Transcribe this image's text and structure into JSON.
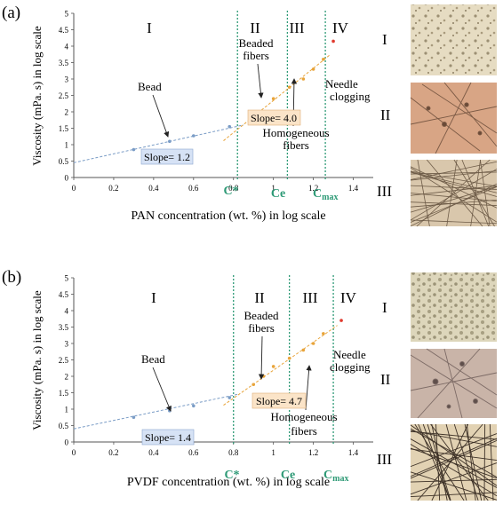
{
  "figure_panels": [
    {
      "panel_label": "(a)",
      "ylabel": "Viscosity (mPa. s) in log scale",
      "xlabel": "PAN concentration (wt. %) in log scale",
      "regions": [
        "I",
        "II",
        "III",
        "IV"
      ],
      "annotations": {
        "bead": "Bead",
        "beaded": [
          "Beaded",
          "fibers"
        ],
        "homogeneous": [
          "Homogeneous",
          "fibers"
        ],
        "needle": [
          "Needle",
          "clogging"
        ],
        "slope1": "Slope= 1.2",
        "slope2": "Slope= 4.0"
      },
      "thresholds": {
        "c_star": "C*",
        "ce": "Ce",
        "cmax": "C",
        "cmax_sub": "max"
      },
      "micrograph_labels": [
        "I",
        "II",
        "III"
      ]
    },
    {
      "panel_label": "(b)",
      "ylabel": "Viscosity (mPa. s) in log scale",
      "xlabel": "PVDF concentration (wt. %) in log scale",
      "regions": [
        "I",
        "II",
        "III",
        "IV"
      ],
      "annotations": {
        "bead": "Bead",
        "beaded": [
          "Beaded",
          "fibers"
        ],
        "homogeneous": [
          "Homogeneous",
          "fibers"
        ],
        "needle": [
          "Needle",
          "clogging"
        ],
        "slope1": "Slope= 1.4",
        "slope2": "Slope= 4.7"
      },
      "thresholds": {
        "c_star": "C*",
        "ce": "Ce",
        "cmax": "C",
        "cmax_sub": "max"
      },
      "micrograph_labels": [
        "I",
        "II",
        "III"
      ]
    }
  ],
  "chart_data": [
    {
      "type": "scatter",
      "xlim": [
        0,
        1.5
      ],
      "ylim": [
        0,
        5
      ],
      "x_ticks": [
        0,
        0.2,
        0.4,
        0.6,
        0.8,
        1,
        1.2,
        1.4
      ],
      "y_ticks": [
        0,
        0.5,
        1,
        1.5,
        2,
        2.5,
        3,
        3.5,
        4,
        4.5,
        5
      ],
      "grid": false,
      "thresholds_x": [
        0.82,
        1.07,
        1.26
      ],
      "series": [
        {
          "color": "#7a9cc6",
          "x": [
            0.3,
            0.48,
            0.6,
            0.78
          ],
          "y": [
            0.85,
            1.1,
            1.27,
            1.55
          ]
        },
        {
          "color": "#e8a43a",
          "x": [
            0.9,
            0.95,
            1.0,
            1.08,
            1.15,
            1.2,
            1.25
          ],
          "y": [
            1.75,
            2.0,
            2.4,
            2.75,
            3.0,
            3.3,
            3.6
          ]
        },
        {
          "color": "#e03a2e",
          "x": [
            1.3
          ],
          "y": [
            4.15
          ]
        }
      ],
      "fit_lines": [
        {
          "color": "#7a9cc6",
          "x": [
            0,
            0.85
          ],
          "y": [
            0.45,
            1.6
          ]
        },
        {
          "color": "#e8a43a",
          "x": [
            0.75,
            1.28
          ],
          "y": [
            1.12,
            3.72
          ]
        }
      ]
    },
    {
      "type": "scatter",
      "xlim": [
        0,
        1.5
      ],
      "ylim": [
        0,
        5
      ],
      "x_ticks": [
        0,
        0.2,
        0.4,
        0.6,
        0.8,
        1,
        1.2,
        1.4
      ],
      "y_ticks": [
        0,
        0.5,
        1,
        1.5,
        2,
        2.5,
        3,
        3.5,
        4,
        4.5,
        5
      ],
      "grid": false,
      "thresholds_x": [
        0.8,
        1.08,
        1.3
      ],
      "series": [
        {
          "color": "#7a9cc6",
          "x": [
            0.3,
            0.48,
            0.6,
            0.78
          ],
          "y": [
            0.75,
            0.95,
            1.1,
            1.35
          ]
        },
        {
          "color": "#e8a43a",
          "x": [
            0.9,
            0.95,
            1.0,
            1.08,
            1.15,
            1.2,
            1.25
          ],
          "y": [
            1.75,
            2.0,
            2.3,
            2.55,
            2.8,
            3.0,
            3.3
          ]
        },
        {
          "color": "#e03a2e",
          "x": [
            1.34
          ],
          "y": [
            3.7
          ]
        }
      ],
      "fit_lines": [
        {
          "color": "#7a9cc6",
          "x": [
            0,
            0.82
          ],
          "y": [
            0.4,
            1.45
          ]
        },
        {
          "color": "#e8a43a",
          "x": [
            0.75,
            1.32
          ],
          "y": [
            1.12,
            3.55
          ]
        }
      ]
    }
  ],
  "colors": {
    "threshold_line": "#2e9a76",
    "threshold_label": "#2e9a76",
    "slope1_box": "#d6e2f5",
    "slope2_box": "#fbe4c8"
  }
}
